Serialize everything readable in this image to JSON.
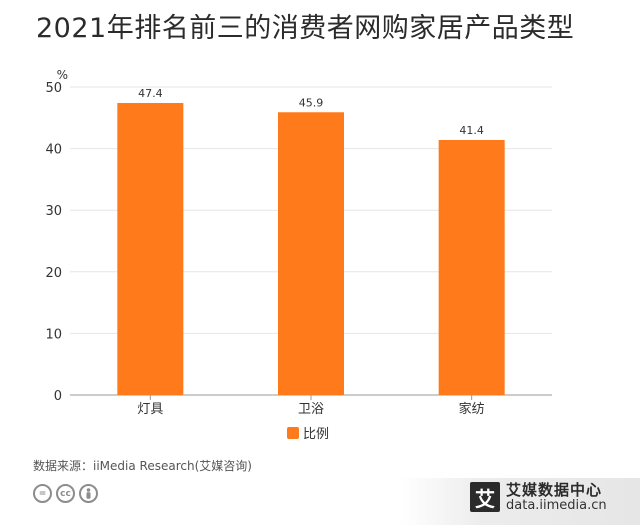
{
  "title": "2021年排名前三的消费者网购家居产品类型",
  "chart_data": {
    "type": "bar",
    "categories": [
      "灯具",
      "卫浴",
      "家纺"
    ],
    "series": [
      {
        "name": "比例",
        "values": [
          47.4,
          45.9,
          41.4
        ],
        "color": "#ff7a1a"
      }
    ],
    "data_labels": [
      "47.4",
      "45.9",
      "41.4"
    ],
    "ylabel": "%",
    "ylim": [
      0,
      50
    ],
    "yticks": [
      0,
      10,
      20,
      30,
      40,
      50
    ],
    "grid": true,
    "legend_position": "bottom"
  },
  "legend": {
    "label": "比例"
  },
  "source": "数据来源：iiMedia Research(艾媒咨询)",
  "license_icons": [
    "=",
    "cc",
    "person"
  ],
  "brand": {
    "logo_char": "艾",
    "name": "艾媒数据中心",
    "url": "data.iimedia.cn"
  }
}
